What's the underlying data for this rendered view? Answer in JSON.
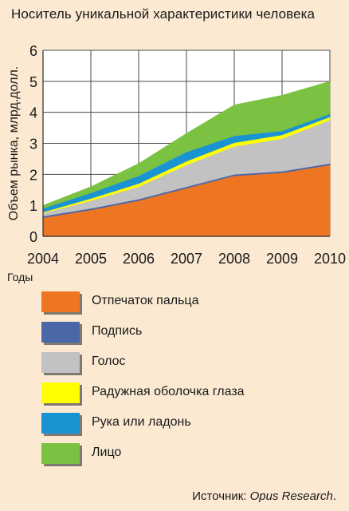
{
  "title": "Носитель уникальной характеристики человека",
  "source": {
    "prefix": "Источник: ",
    "name": "Opus Research",
    "suffix": "."
  },
  "chart_data": {
    "type": "area",
    "stacked": true,
    "x": [
      "2004",
      "2005",
      "2006",
      "2007",
      "2008",
      "2009",
      "2010"
    ],
    "xlabel": "Годы",
    "ylabel": "Объем рынка, млрд.долл.",
    "ylim": [
      0,
      6
    ],
    "yticks": [
      "0",
      "1",
      "2",
      "3",
      "4",
      "5",
      "6"
    ],
    "grid": true,
    "legend_position": "bottom",
    "series": [
      {
        "name": "Отпечаток пальца",
        "color": "#ee7623",
        "values": [
          0.6,
          0.85,
          1.15,
          1.55,
          1.95,
          2.05,
          2.3
        ]
      },
      {
        "name": "Подпись",
        "color": "#4a67a8",
        "values": [
          0.05,
          0.05,
          0.05,
          0.05,
          0.05,
          0.05,
          0.05
        ]
      },
      {
        "name": "Голос",
        "color": "#c2c2c2",
        "values": [
          0.1,
          0.25,
          0.4,
          0.7,
          0.9,
          1.05,
          1.4
        ]
      },
      {
        "name": "Радужная оболочка глаза",
        "color": "#ffff00",
        "values": [
          0.03,
          0.07,
          0.1,
          0.12,
          0.12,
          0.12,
          0.1
        ]
      },
      {
        "name": "Рука или ладонь",
        "color": "#1a93d2",
        "values": [
          0.12,
          0.18,
          0.25,
          0.3,
          0.22,
          0.13,
          0.1
        ]
      },
      {
        "name": "Лицо",
        "color": "#7bc242",
        "values": [
          0.1,
          0.2,
          0.4,
          0.6,
          1.0,
          1.15,
          1.05
        ]
      }
    ]
  }
}
